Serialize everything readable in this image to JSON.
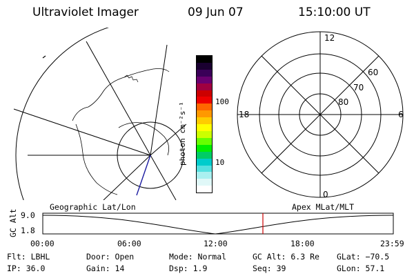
{
  "header": {
    "title": "Ultraviolet Imager",
    "date": "09 Jun 07",
    "time": "15:10:00 UT"
  },
  "colorbar": {
    "unit_label": "photon cm⁻²s⁻¹",
    "tick_labels": [
      "100",
      "10"
    ],
    "colors": [
      "#000000",
      "#1a0030",
      "#3a0058",
      "#6a0070",
      "#a00040",
      "#cc0000",
      "#ee0000",
      "#ff6600",
      "#ff9900",
      "#ffcc00",
      "#ffff00",
      "#ccff00",
      "#66ff00",
      "#00ee00",
      "#00cc66",
      "#00cccc",
      "#55e0e0",
      "#aaf0f0",
      "#e0f8f8",
      "#ffffff"
    ]
  },
  "geo_panel": {
    "label": "Geographic Lat/Lon"
  },
  "polar_panel": {
    "label": "Apex MLat/MLT",
    "mlt_labels": {
      "top": "12",
      "bottom": "0",
      "left": "18",
      "right": "6"
    },
    "lat_labels": [
      "60",
      "70",
      "80"
    ]
  },
  "altitude_plot": {
    "ylabel": "GC Alt",
    "y_ticks": [
      "9.0",
      "1.8"
    ],
    "x_ticks": [
      "00:00",
      "06:00",
      "12:00",
      "18:00",
      "23:59"
    ],
    "current_time_marker": "15:10",
    "line_color": "#000000",
    "marker_color": "#cc0000"
  },
  "status": {
    "flt": "Flt: LBHL",
    "ip": "IP: 36.0",
    "door": "Door: Open",
    "gain": "Gain: 14",
    "mode": "Mode: Normal",
    "dsp": "Dsp:    1.9",
    "gc_alt": "GC Alt: 6.3 Re",
    "seq": "Seq: 39",
    "glat": "GLat: −70.5",
    "glon": "GLon:  57.1"
  }
}
